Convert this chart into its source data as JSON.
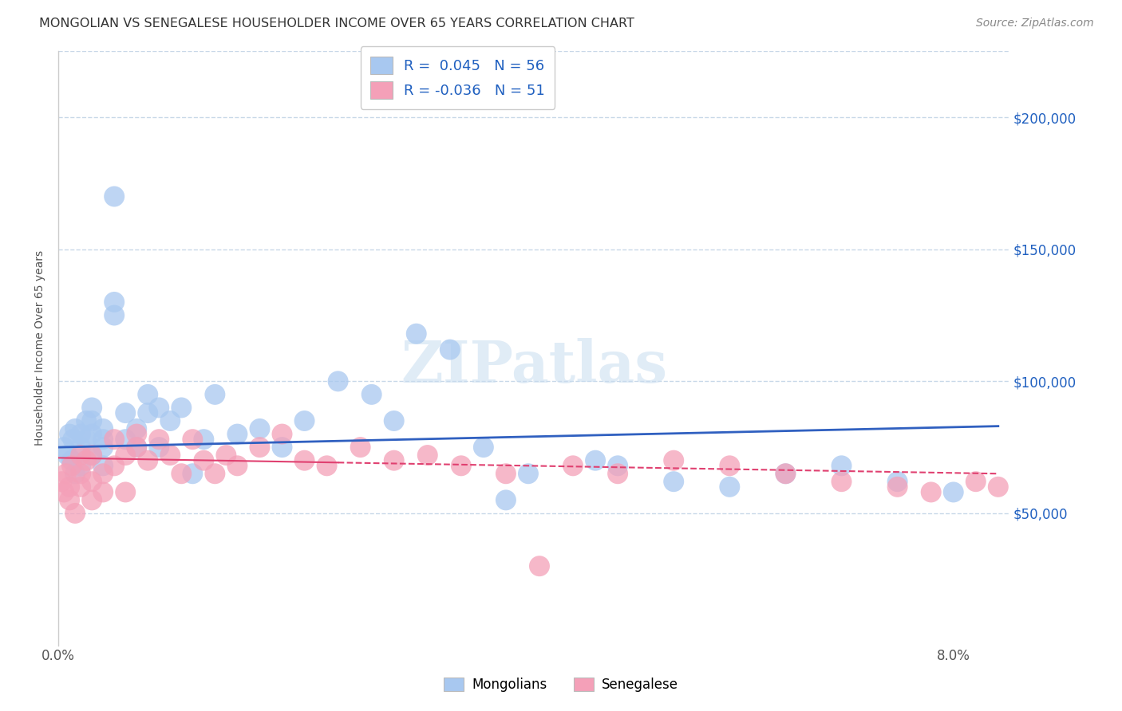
{
  "title": "MONGOLIAN VS SENEGALESE HOUSEHOLDER INCOME OVER 65 YEARS CORRELATION CHART",
  "source": "Source: ZipAtlas.com",
  "ylabel": "Householder Income Over 65 years",
  "legend_mongolians": "Mongolians",
  "legend_senegalese": "Senegalese",
  "mongolian_R": "0.045",
  "mongolian_N": "56",
  "senegalese_R": "-0.036",
  "senegalese_N": "51",
  "color_mongolian": "#a8c8f0",
  "color_senegalese": "#f4a0b8",
  "color_mongolian_line": "#3060c0",
  "color_senegalese_line": "#e04070",
  "color_r_value": "#2060c0",
  "background_color": "#ffffff",
  "grid_color": "#c8d8e8",
  "ytick_labels": [
    "$50,000",
    "$100,000",
    "$150,000",
    "$200,000"
  ],
  "ytick_values": [
    50000,
    100000,
    150000,
    200000
  ],
  "xlim": [
    0.0,
    0.085
  ],
  "ylim": [
    0,
    225000
  ],
  "mongolian_x": [
    0.0005,
    0.0008,
    0.001,
    0.0012,
    0.0013,
    0.0015,
    0.0015,
    0.002,
    0.002,
    0.002,
    0.0025,
    0.0025,
    0.003,
    0.003,
    0.003,
    0.003,
    0.004,
    0.004,
    0.004,
    0.004,
    0.005,
    0.005,
    0.005,
    0.006,
    0.006,
    0.007,
    0.007,
    0.008,
    0.008,
    0.009,
    0.009,
    0.01,
    0.011,
    0.012,
    0.013,
    0.014,
    0.016,
    0.018,
    0.02,
    0.022,
    0.025,
    0.028,
    0.03,
    0.032,
    0.035,
    0.038,
    0.04,
    0.042,
    0.048,
    0.05,
    0.055,
    0.06,
    0.065,
    0.07,
    0.075,
    0.08
  ],
  "mongolian_y": [
    75000,
    72000,
    80000,
    70000,
    78000,
    65000,
    82000,
    75000,
    68000,
    80000,
    85000,
    78000,
    72000,
    80000,
    90000,
    85000,
    78000,
    82000,
    68000,
    75000,
    170000,
    125000,
    130000,
    88000,
    78000,
    82000,
    75000,
    88000,
    95000,
    90000,
    75000,
    85000,
    90000,
    65000,
    78000,
    95000,
    80000,
    82000,
    75000,
    85000,
    100000,
    95000,
    85000,
    118000,
    112000,
    75000,
    55000,
    65000,
    70000,
    68000,
    62000,
    60000,
    65000,
    68000,
    62000,
    58000
  ],
  "senegalese_x": [
    0.0003,
    0.0005,
    0.0007,
    0.001,
    0.001,
    0.0012,
    0.0015,
    0.002,
    0.002,
    0.002,
    0.0025,
    0.003,
    0.003,
    0.003,
    0.004,
    0.004,
    0.005,
    0.005,
    0.006,
    0.006,
    0.007,
    0.007,
    0.008,
    0.009,
    0.01,
    0.011,
    0.012,
    0.013,
    0.014,
    0.015,
    0.016,
    0.018,
    0.02,
    0.022,
    0.024,
    0.027,
    0.03,
    0.033,
    0.036,
    0.04,
    0.043,
    0.046,
    0.05,
    0.055,
    0.06,
    0.065,
    0.07,
    0.075,
    0.078,
    0.082,
    0.084
  ],
  "senegalese_y": [
    62000,
    58000,
    65000,
    60000,
    55000,
    68000,
    50000,
    72000,
    65000,
    60000,
    70000,
    72000,
    55000,
    62000,
    58000,
    65000,
    78000,
    68000,
    72000,
    58000,
    80000,
    75000,
    70000,
    78000,
    72000,
    65000,
    78000,
    70000,
    65000,
    72000,
    68000,
    75000,
    80000,
    70000,
    68000,
    75000,
    70000,
    72000,
    68000,
    65000,
    30000,
    68000,
    65000,
    70000,
    68000,
    65000,
    62000,
    60000,
    58000,
    62000,
    60000
  ]
}
